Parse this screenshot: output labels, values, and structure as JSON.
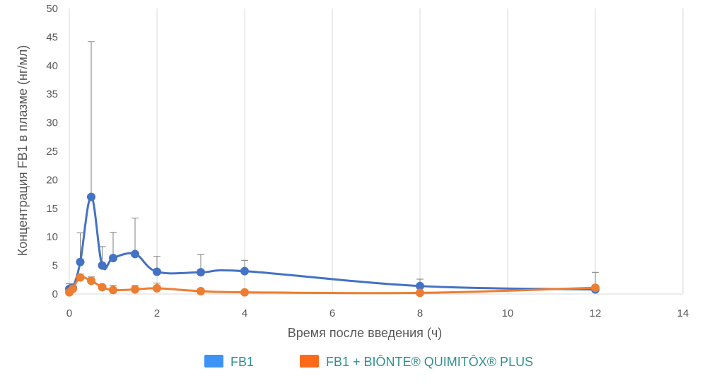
{
  "chart_data": {
    "type": "line",
    "xlabel": "Время после введения (ч)",
    "ylabel": "Концентрация FB1 в плазме (нг/мл)",
    "xlim": [
      0,
      14
    ],
    "ylim": [
      0,
      50
    ],
    "x_ticks": [
      "0",
      "2",
      "4",
      "6",
      "8",
      "10",
      "12",
      "14"
    ],
    "y_ticks": [
      "0",
      "5",
      "10",
      "15",
      "20",
      "25",
      "30",
      "35",
      "40",
      "45",
      "50"
    ],
    "grid": "vertical",
    "legend_position": "bottom",
    "series": [
      {
        "name": "FB1",
        "color": "#4472C4",
        "legend_color": "#3d93f5",
        "x": [
          0,
          0.08,
          0.25,
          0.5,
          0.75,
          1,
          1.5,
          2,
          3,
          4,
          8,
          12
        ],
        "y": [
          0.9,
          1.1,
          5.6,
          17.0,
          5.0,
          6.3,
          7.0,
          3.9,
          3.8,
          4.0,
          1.4,
          0.8
        ],
        "err_up": [
          0.9,
          0.6,
          5.1,
          27.2,
          3.3,
          4.5,
          6.3,
          2.7,
          3.1,
          1.9,
          1.2,
          3.0
        ]
      },
      {
        "name": "FB1 + BIŌNTE® QUIMITŌX® PLUS",
        "color": "#ED7D31",
        "legend_color": "#ff6a1a",
        "x": [
          0,
          0.08,
          0.25,
          0.5,
          0.75,
          1,
          1.5,
          2,
          3,
          4,
          8,
          12
        ],
        "y": [
          0.3,
          0.9,
          2.9,
          2.3,
          1.2,
          0.7,
          0.8,
          1.0,
          0.5,
          0.3,
          0.2,
          1.1
        ],
        "err_up": [
          0.5,
          0.5,
          0.6,
          0.7,
          0.4,
          0.8,
          0.7,
          0.9,
          0.4,
          0.3,
          0.2,
          0.4
        ]
      }
    ]
  }
}
